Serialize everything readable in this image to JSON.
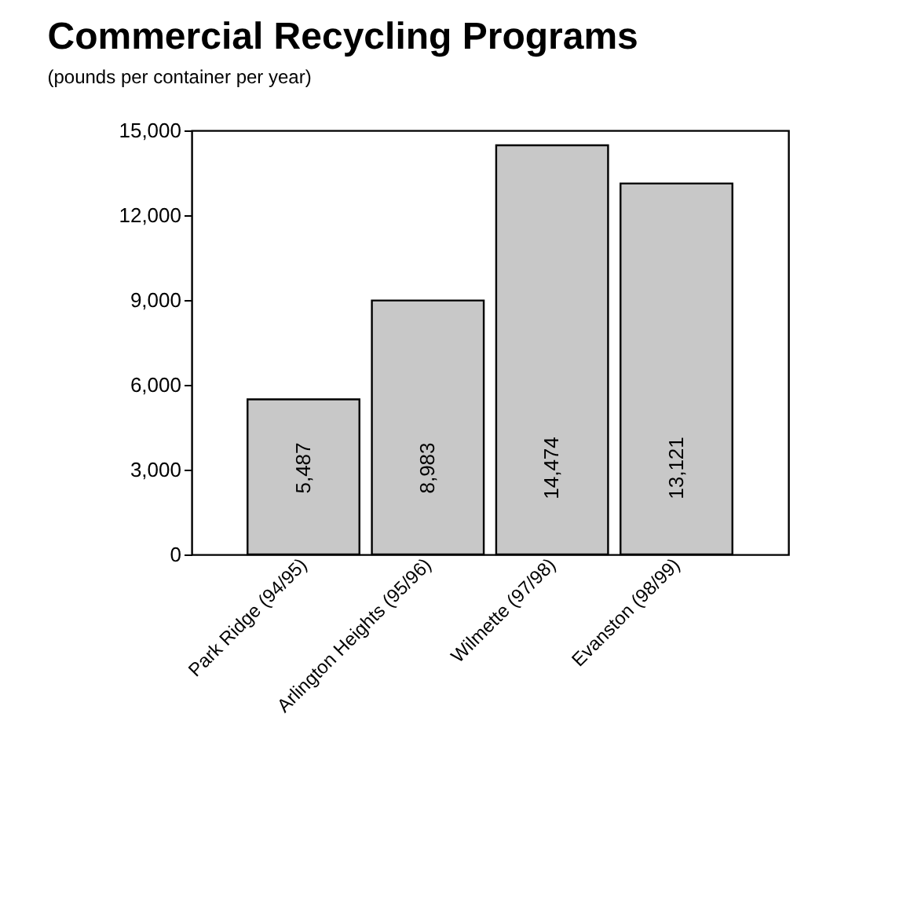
{
  "chart_data": {
    "type": "bar",
    "title": "Commercial Recycling Programs",
    "subtitle": "(pounds per container per year)",
    "categories": [
      "Park Ridge (94/95)",
      "Arlington Heights (95/96)",
      "Wilmette (97/98)",
      "Evanston (98/99)"
    ],
    "values": [
      5487,
      8983,
      14474,
      13121
    ],
    "color": "#c8c8c8",
    "value_labels": [
      "5,487",
      "8,983",
      "14,474",
      "13,121"
    ],
    "ylim": [
      0,
      15000
    ],
    "yticks": [
      0,
      {
        "value": 3000,
        "label": "3,000"
      },
      {
        "value": 6000,
        "label": "6,000"
      },
      {
        "value": 9000,
        "label": "9,000"
      },
      {
        "value": 12000,
        "label": "12,000"
      },
      {
        "value": 15000,
        "label": "15,000"
      }
    ],
    "grid": false
  }
}
